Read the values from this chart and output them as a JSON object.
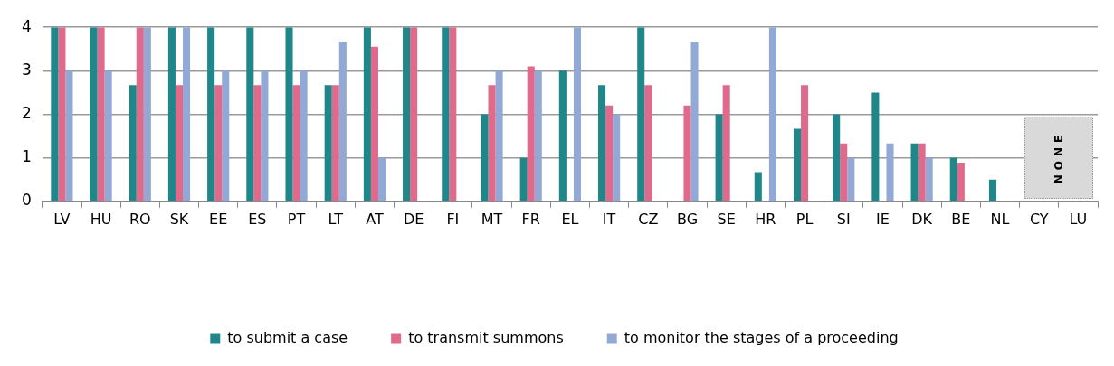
{
  "chart_data": {
    "type": "bar",
    "categories": [
      "LV",
      "HU",
      "RO",
      "SK",
      "EE",
      "ES",
      "PT",
      "LT",
      "AT",
      "DE",
      "FI",
      "MT",
      "FR",
      "EL",
      "IT",
      "CZ",
      "BG",
      "SE",
      "HR",
      "PL",
      "SI",
      "IE",
      "DK",
      "BE",
      "NL",
      "CY",
      "LU"
    ],
    "series": [
      {
        "name": "to submit a case",
        "color": "#1f868a",
        "values": [
          4,
          4,
          2.67,
          4,
          4,
          4,
          4,
          2.67,
          4,
          4,
          4,
          2,
          1,
          3,
          2.67,
          4,
          null,
          2,
          0.67,
          1.67,
          2,
          2.5,
          1.33,
          1,
          0.5,
          null,
          null
        ]
      },
      {
        "name": "to transmit summons",
        "color": "#e06a8b",
        "values": [
          4,
          4,
          4,
          2.67,
          2.67,
          2.67,
          2.67,
          2.67,
          3.55,
          4,
          4,
          2.67,
          3.1,
          null,
          2.2,
          2.67,
          2.2,
          2.67,
          null,
          2.67,
          1.33,
          null,
          1.33,
          0.89,
          null,
          null,
          null
        ]
      },
      {
        "name": "to monitor the stages of a proceeding",
        "color": "#92a9d6",
        "values": [
          3,
          3,
          4,
          4,
          3,
          3,
          3,
          3.67,
          1,
          null,
          null,
          3,
          3,
          4,
          2,
          null,
          3.67,
          null,
          4,
          null,
          1,
          1.33,
          1,
          null,
          null,
          null,
          null
        ]
      }
    ],
    "ylim": [
      0,
      4
    ],
    "yticks": [
      0,
      1,
      2,
      3,
      4
    ],
    "grid": "y",
    "legend": "bottom",
    "annotations": [
      "NONE"
    ]
  }
}
